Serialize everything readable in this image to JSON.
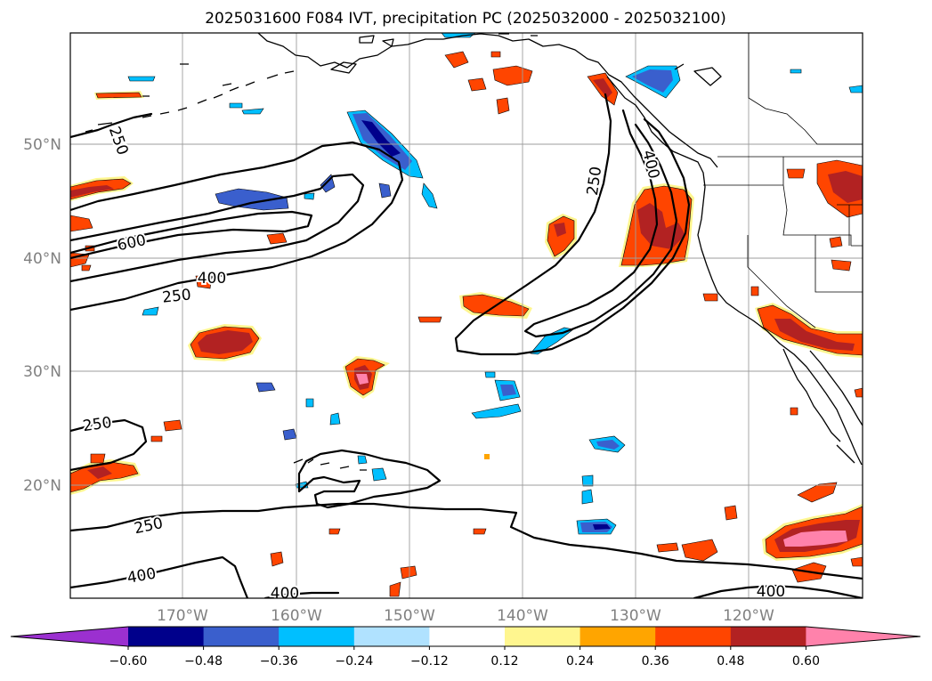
{
  "title": "2025031600 F084 IVT, precipitation PC (2025032000 - 2025032100)",
  "map": {
    "lat_labels": [
      "50°N",
      "40°N",
      "30°N",
      "20°N"
    ],
    "lon_labels": [
      "170°W",
      "160°W",
      "150°W",
      "140°W",
      "130°W",
      "120°W"
    ]
  },
  "ivt_contours": {
    "levels": [
      250,
      400,
      600
    ],
    "labels": [
      "250",
      "600",
      "400",
      "250",
      "250",
      "400",
      "250",
      "400",
      "400",
      "250",
      "400"
    ]
  },
  "colorbar": {
    "ticks": [
      "−0.60",
      "−0.48",
      "−0.36",
      "−0.24",
      "−0.12",
      "0.12",
      "0.24",
      "0.36",
      "0.48",
      "0.60"
    ],
    "colors": [
      "#9b30d0",
      "#00008b",
      "#3a5fcd",
      "#00bfff",
      "#b0e2ff",
      "#ffffff",
      "#fff68f",
      "#ffa500",
      "#ff4500",
      "#b22222",
      "#ff82ab"
    ]
  },
  "colors": {
    "neg_strong": "#00008b",
    "neg_mid": "#3a5fcd",
    "neg_light": "#00bfff",
    "neg_faint": "#b0e2ff",
    "pos_faint": "#fff68f",
    "pos_light": "#ffa500",
    "pos_mid": "#ff4500",
    "pos_strong": "#b22222",
    "pos_max": "#ff82ab"
  }
}
